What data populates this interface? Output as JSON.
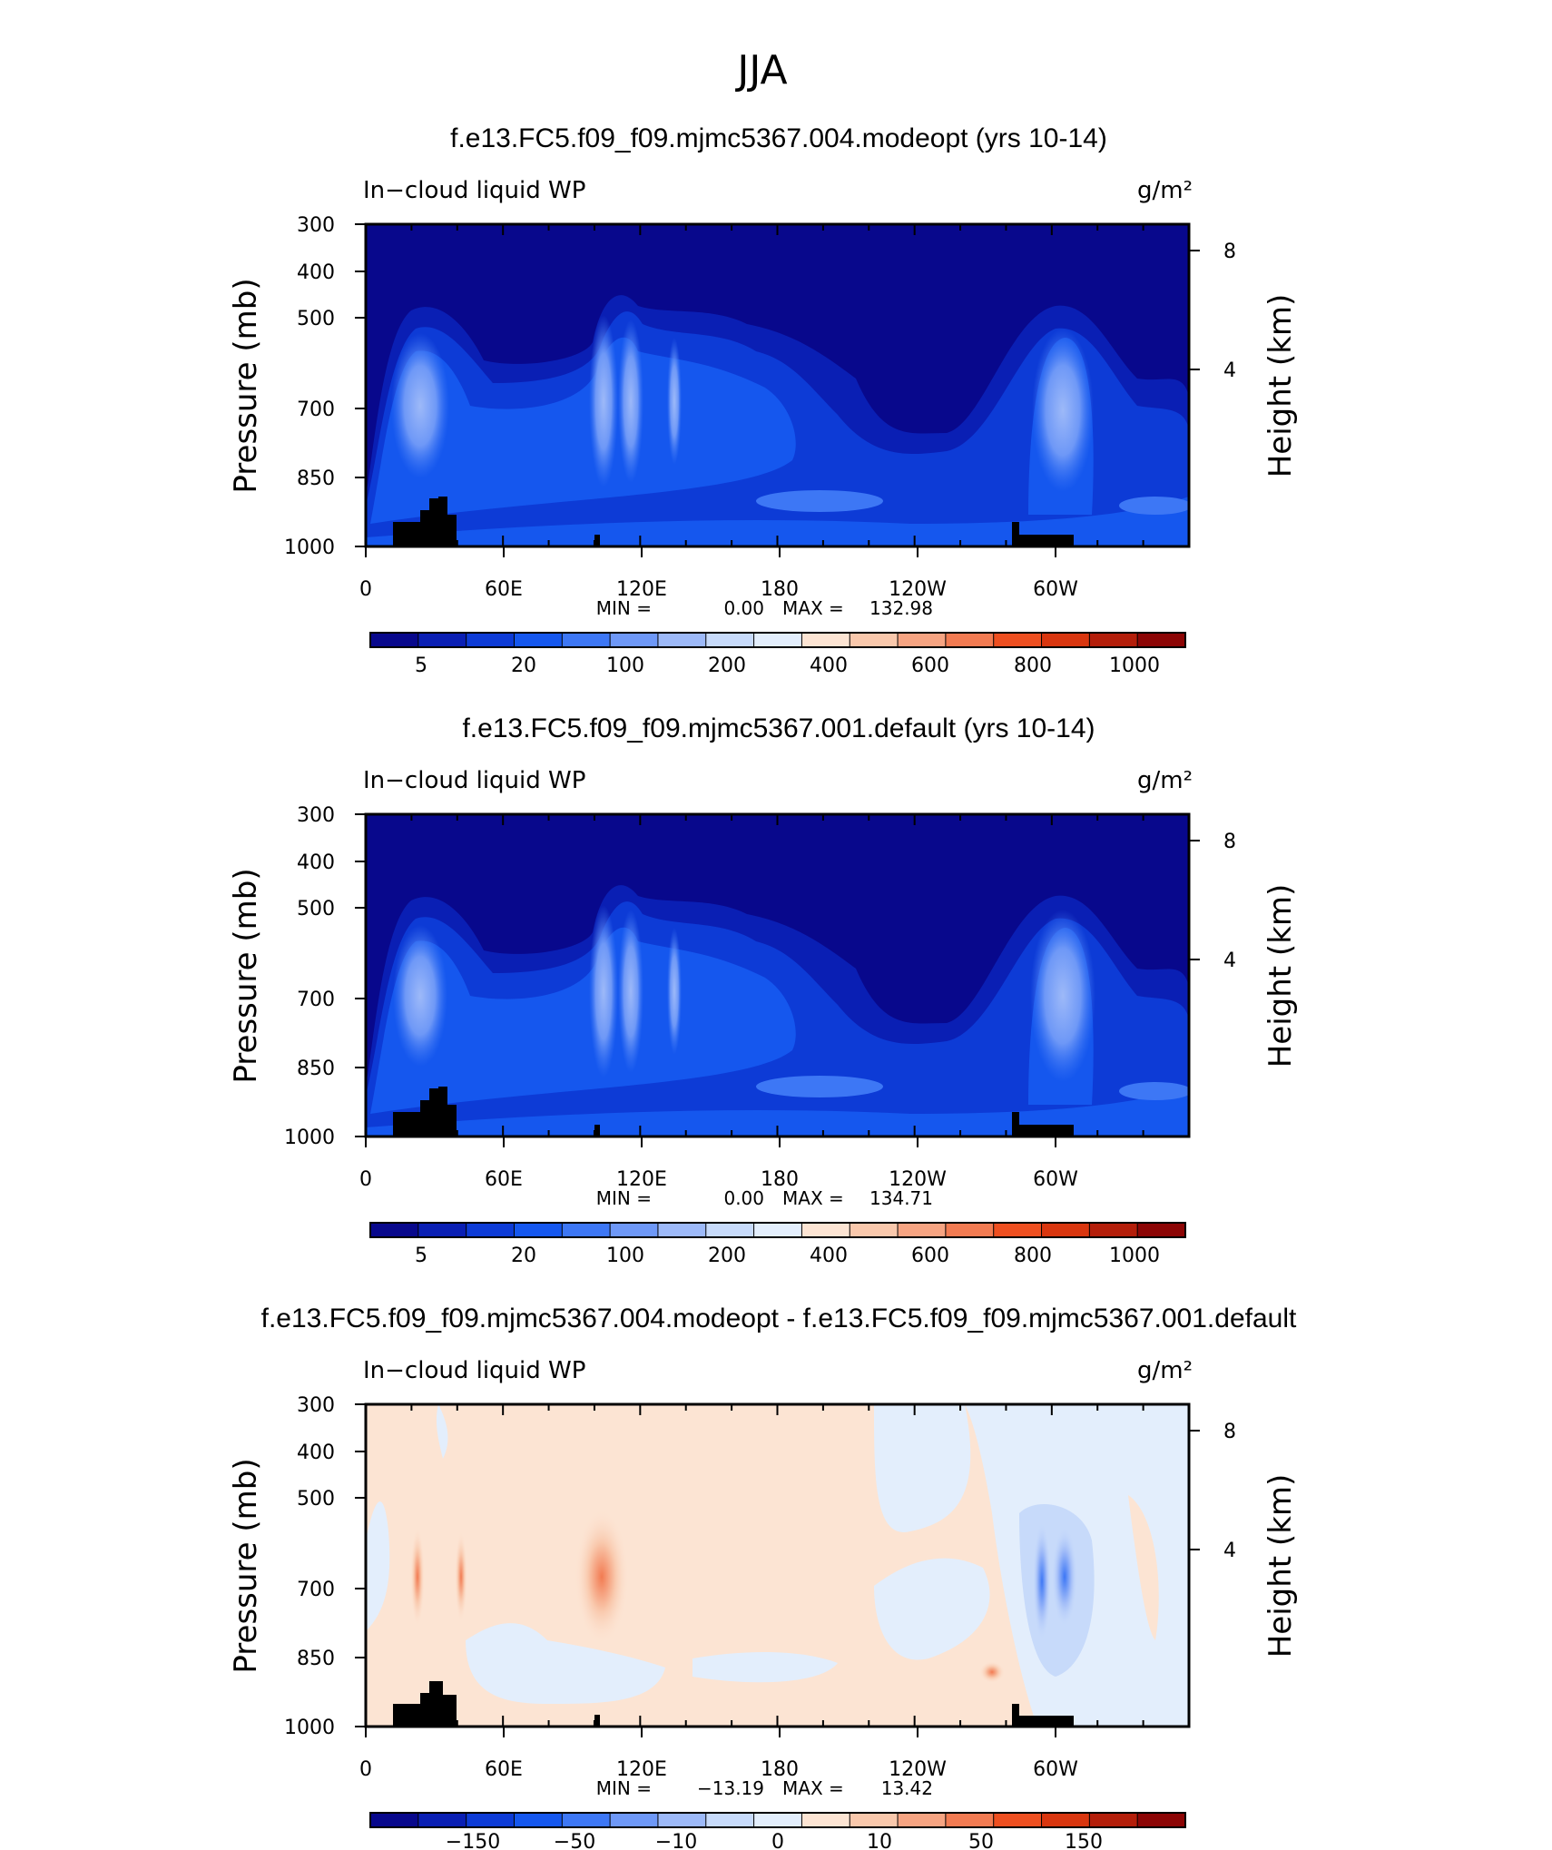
{
  "figure_title": "JJA",
  "colors": {
    "plot_background": "#FFFFFF",
    "land_mask": "#000000"
  },
  "chart_data": [
    {
      "type": "heatmap",
      "title": "f.e13.FC5.f09_f09.mjmc5367.004.modeopt (yrs 10-14)",
      "variable": "In−cloud liquid WP",
      "units": "g/m²",
      "ylabel": "Pressure (mb)",
      "ylabel_right": "Height (km)",
      "x_ticks": [
        "0",
        "60E",
        "120E",
        "180",
        "120W",
        "60W"
      ],
      "y_ticks": [
        "300",
        "400",
        "500",
        "700",
        "850",
        "1000"
      ],
      "y_right_ticks": [
        "8",
        "4"
      ],
      "stats": {
        "min_label": "MIN =",
        "min": "0.00",
        "max_label": "MAX =",
        "max": "132.98"
      },
      "colorbar": {
        "labels": [
          "5",
          "20",
          "100",
          "200",
          "400",
          "600",
          "800",
          "1000"
        ],
        "colors": [
          "#08088C",
          "#0A1FB4",
          "#0D3BD6",
          "#1557EE",
          "#3D77F5",
          "#6E98F7",
          "#9DB9F8",
          "#C7DAFA",
          "#E3EEFC",
          "#FCE4D3",
          "#F9C8AC",
          "#F6A482",
          "#F27B52",
          "#EE4F20",
          "#D9360F",
          "#B41E0A",
          "#8C0505"
        ]
      }
    },
    {
      "type": "heatmap",
      "title": "f.e13.FC5.f09_f09.mjmc5367.001.default (yrs 10-14)",
      "variable": "In−cloud liquid WP",
      "units": "g/m²",
      "ylabel": "Pressure (mb)",
      "ylabel_right": "Height (km)",
      "x_ticks": [
        "0",
        "60E",
        "120E",
        "180",
        "120W",
        "60W"
      ],
      "y_ticks": [
        "300",
        "400",
        "500",
        "700",
        "850",
        "1000"
      ],
      "y_right_ticks": [
        "8",
        "4"
      ],
      "stats": {
        "min_label": "MIN =",
        "min": "0.00",
        "max_label": "MAX =",
        "max": "134.71"
      },
      "colorbar": {
        "labels": [
          "5",
          "20",
          "100",
          "200",
          "400",
          "600",
          "800",
          "1000"
        ],
        "colors": [
          "#08088C",
          "#0A1FB4",
          "#0D3BD6",
          "#1557EE",
          "#3D77F5",
          "#6E98F7",
          "#9DB9F8",
          "#C7DAFA",
          "#E3EEFC",
          "#FCE4D3",
          "#F9C8AC",
          "#F6A482",
          "#F27B52",
          "#EE4F20",
          "#D9360F",
          "#B41E0A",
          "#8C0505"
        ]
      }
    },
    {
      "type": "heatmap",
      "title": "f.e13.FC5.f09_f09.mjmc5367.004.modeopt - f.e13.FC5.f09_f09.mjmc5367.001.default",
      "variable": "In−cloud liquid WP",
      "units": "g/m²",
      "ylabel": "Pressure (mb)",
      "ylabel_right": "Height (km)",
      "x_ticks": [
        "0",
        "60E",
        "120E",
        "180",
        "120W",
        "60W"
      ],
      "y_ticks": [
        "300",
        "400",
        "500",
        "700",
        "850",
        "1000"
      ],
      "y_right_ticks": [
        "8",
        "4"
      ],
      "stats": {
        "min_label": "MIN =",
        "min": "−13.19",
        "max_label": "MAX =",
        "max": "13.42"
      },
      "colorbar": {
        "labels": [
          "−150",
          "−50",
          "−10",
          "0",
          "10",
          "50",
          "150"
        ],
        "colors": [
          "#08088C",
          "#0A1FB4",
          "#0D3BD6",
          "#1557EE",
          "#3D77F5",
          "#6E98F7",
          "#9DB9F8",
          "#C7DAFA",
          "#E3EEFC",
          "#FCE4D3",
          "#F9C8AC",
          "#F6A482",
          "#F27B52",
          "#EE4F20",
          "#D9360F",
          "#B41E0A",
          "#8C0505"
        ]
      }
    }
  ]
}
